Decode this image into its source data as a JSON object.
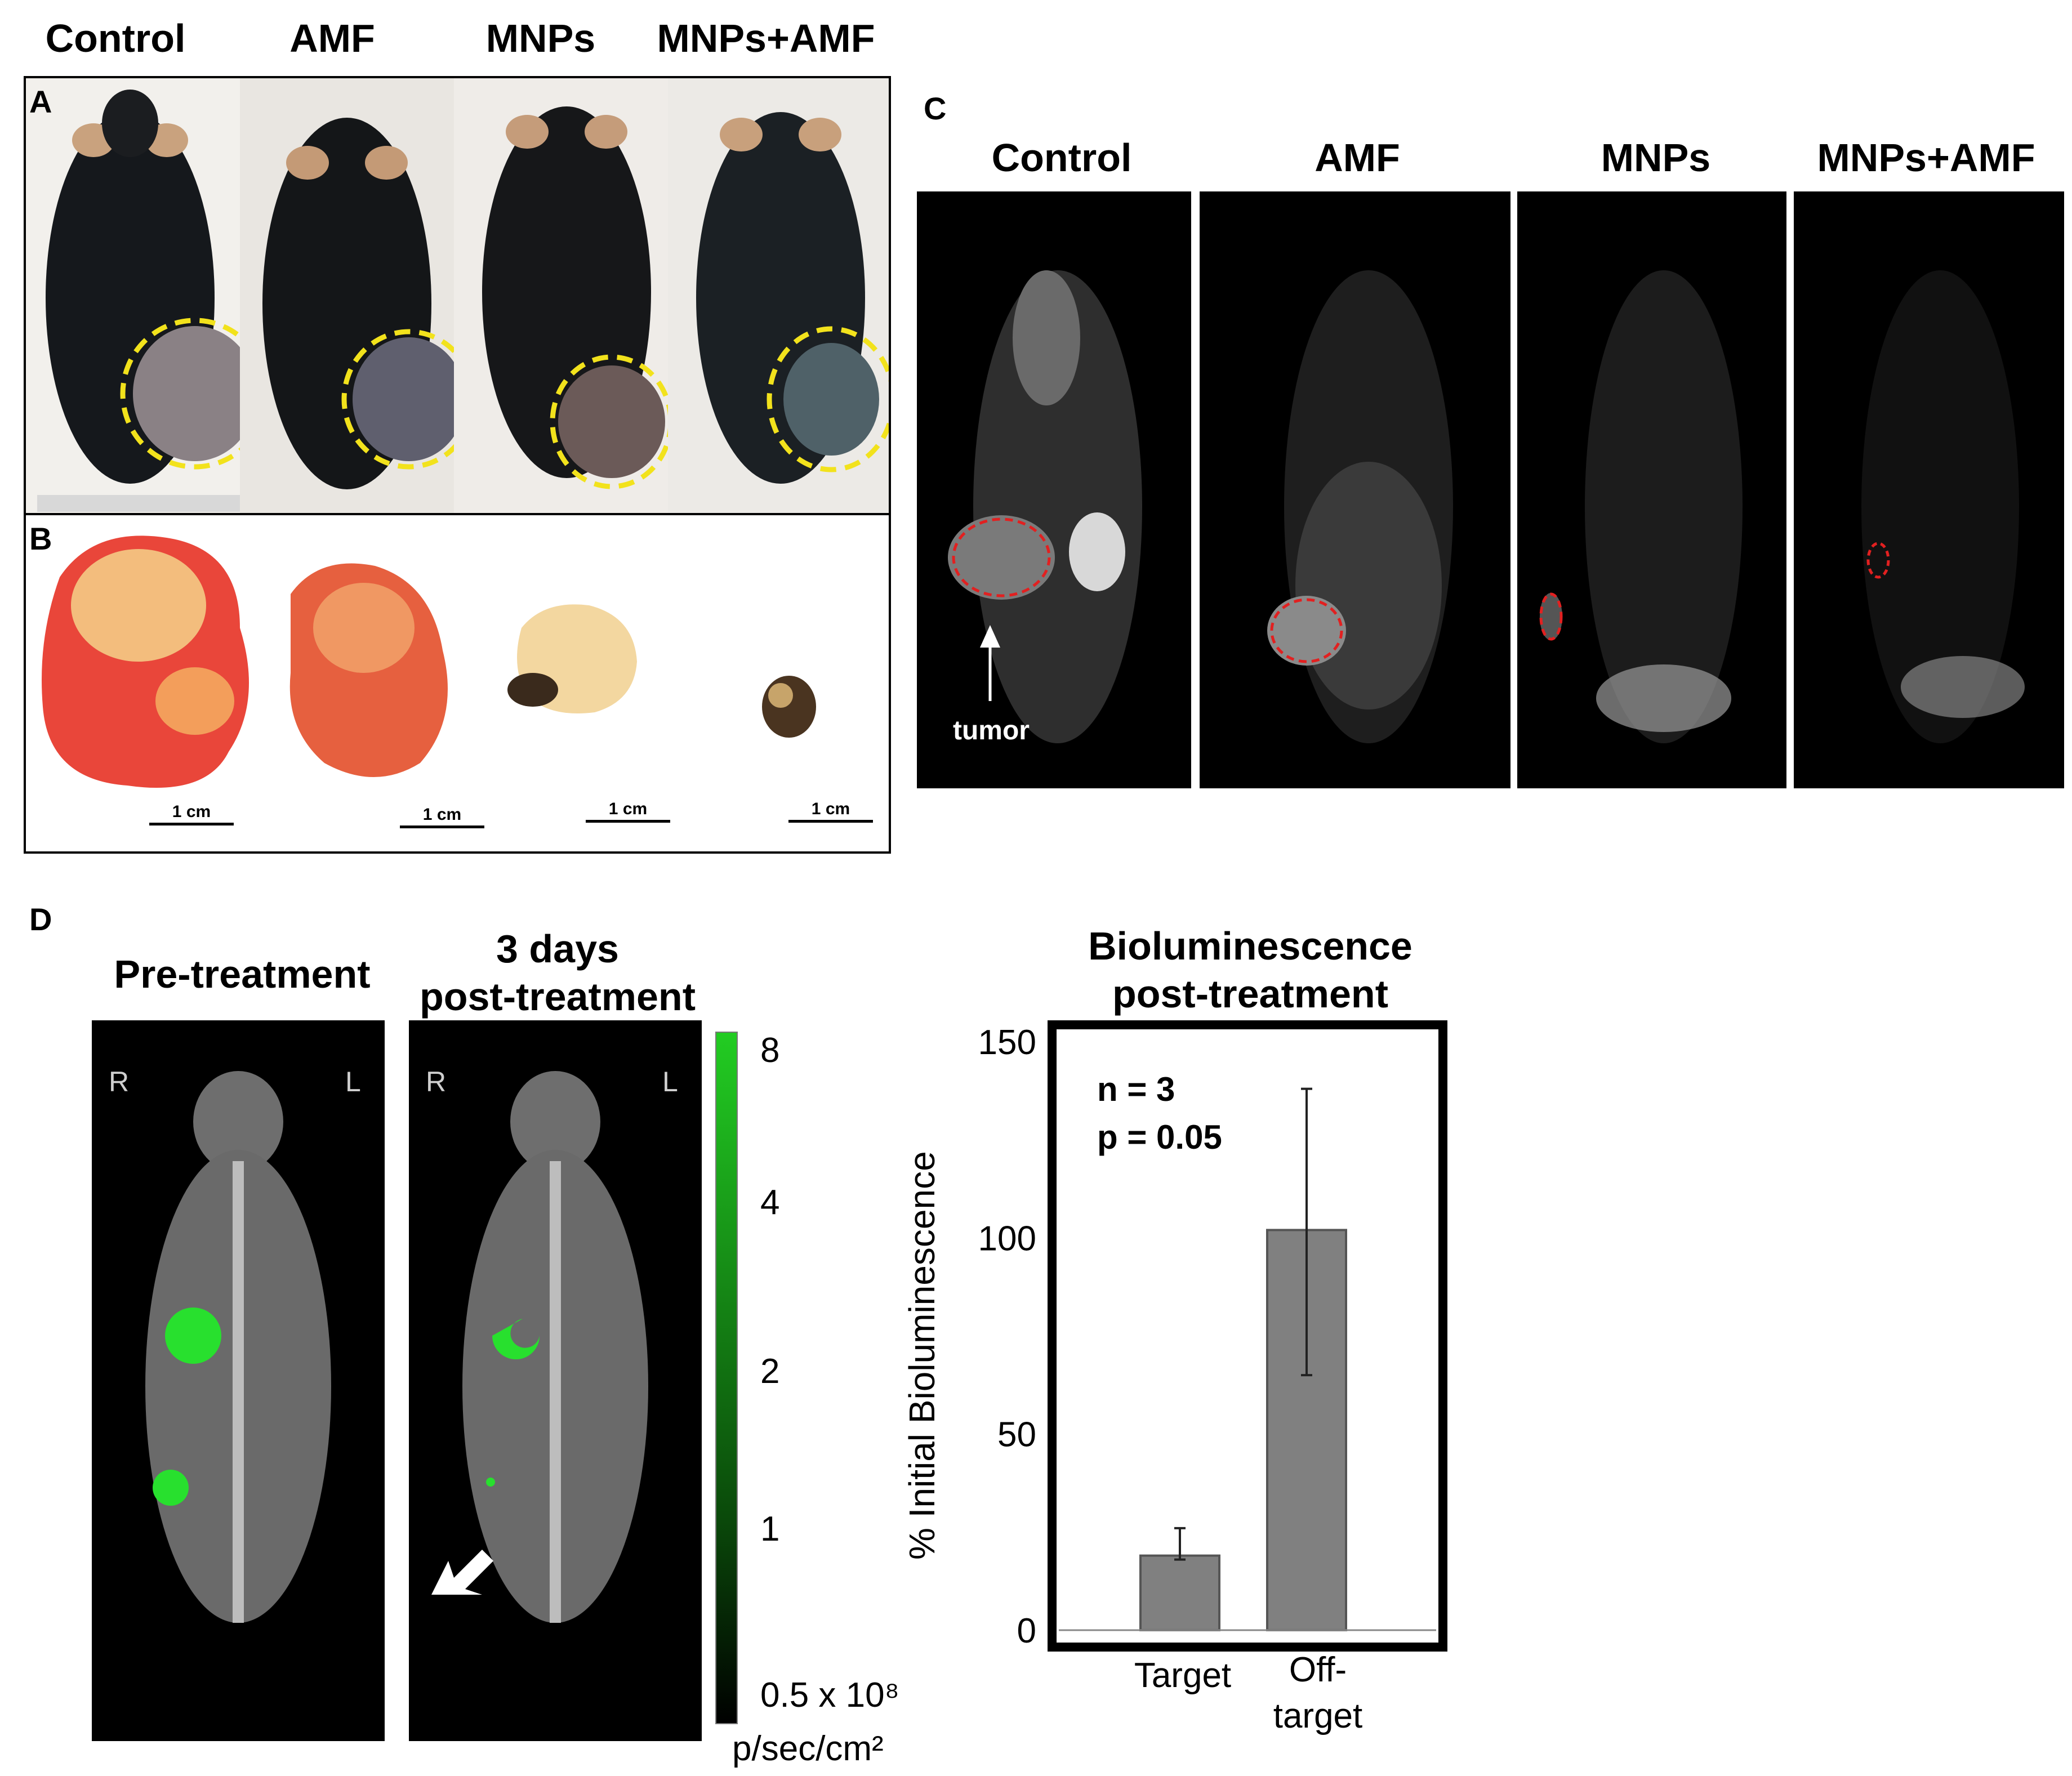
{
  "panel_a_headers": [
    "Control",
    "AMF",
    "MNPs",
    "MNPs+AMF"
  ],
  "panel_labels": {
    "a": "A",
    "b": "B",
    "c": "C",
    "d": "D"
  },
  "panel_b_scalebars": [
    "1 cm",
    "1 cm",
    "1 cm",
    "1 cm"
  ],
  "panel_c_headers": [
    "Control",
    "AMF",
    "MNPs",
    "MNPs+AMF"
  ],
  "panel_c_annotation": "tumor",
  "panel_d": {
    "pre_title": "Pre-treatment",
    "post_title_line1": "3 days",
    "post_title_line2": "post-treatment",
    "orientation_left": "R",
    "orientation_right": "L",
    "colorbar_ticks": [
      "8",
      "4",
      "2",
      "1",
      "0.5 x 10⁸"
    ],
    "colorbar_unit": "p/sec/cm²",
    "colorbar_color": "#22cc22"
  },
  "chart_data": {
    "type": "bar",
    "title_line1": "Bioluminescence",
    "title_line2": "post-treatment",
    "ylabel": "% Initial Bioluminescence",
    "ylim": [
      0,
      150
    ],
    "yticks": [
      "0",
      "50",
      "100",
      "150"
    ],
    "categories": [
      {
        "line1": "Target",
        "line2": ""
      },
      {
        "line1": "Off-",
        "line2": "target"
      }
    ],
    "values": [
      19,
      102
    ],
    "errors": [
      [
        18,
        26
      ],
      [
        65,
        138
      ]
    ],
    "annotation_line1": "n = 3",
    "annotation_line2": "p = 0.05",
    "bar_color": "#808080"
  }
}
